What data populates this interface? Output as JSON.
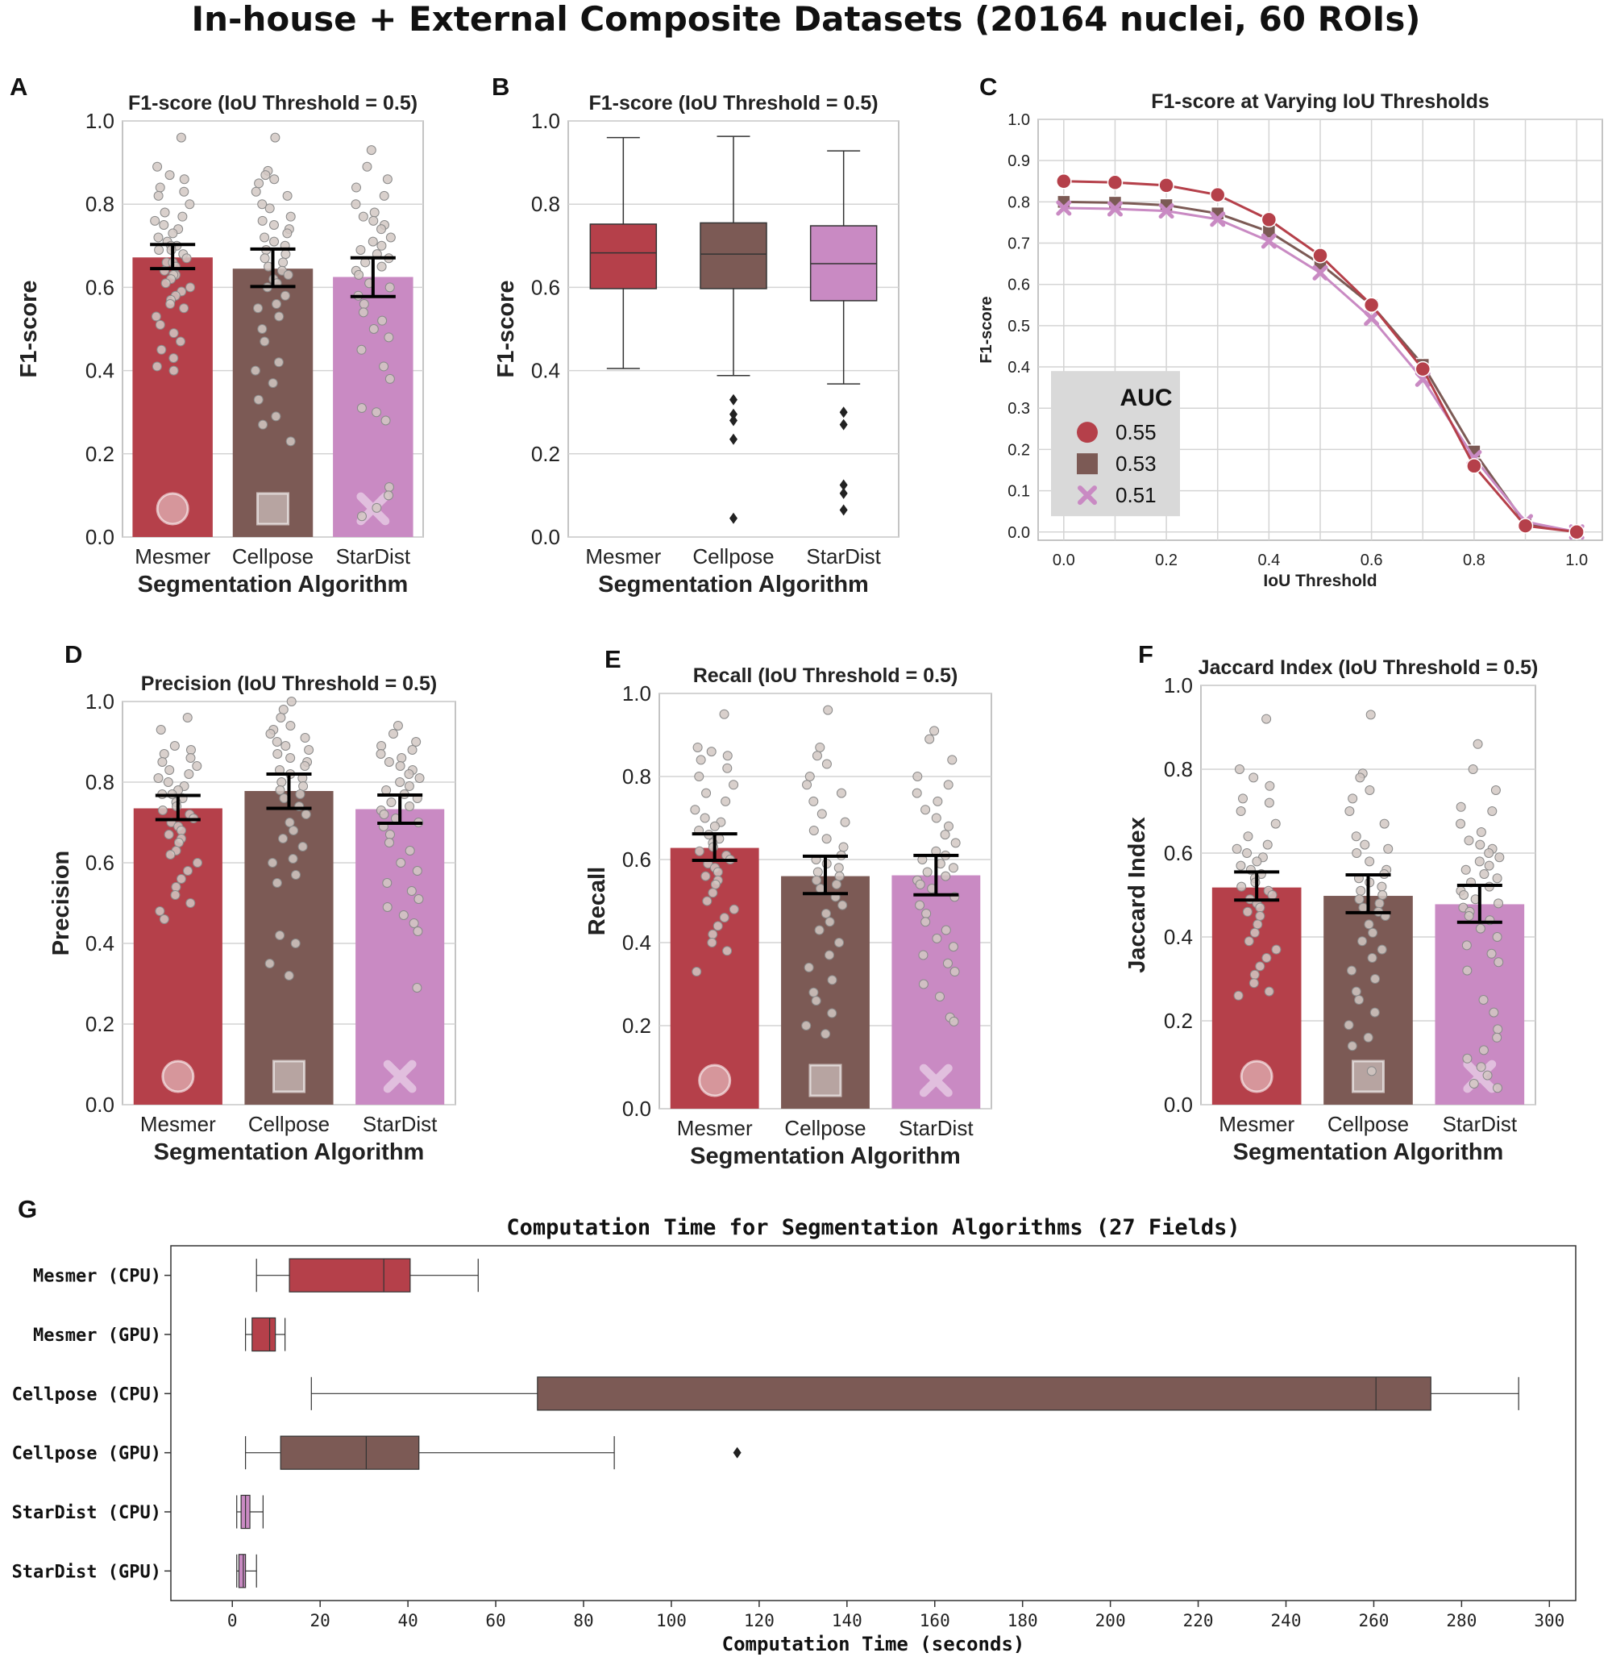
{
  "figure_title": "In-house + External Composite Datasets (20164 nuclei, 60 ROIs)",
  "colors": {
    "mesmer": "#b5404a",
    "cellpose": "#7c5a55",
    "stardist": "#c98ac3",
    "grid": "#d4d4d4",
    "frame": "#b0b0b0"
  },
  "algorithms": [
    "Mesmer",
    "Cellpose",
    "StarDist"
  ],
  "chart_data": [
    {
      "panel": "A",
      "type": "bar",
      "title": "F1-score (IoU Threshold = 0.5)",
      "xlabel": "Segmentation Algorithm",
      "ylabel": "F1-score",
      "ylim": [
        0,
        1.0
      ],
      "yticks": [
        "0.0",
        "0.2",
        "0.4",
        "0.6",
        "0.8",
        "1.0"
      ],
      "categories": [
        "Mesmer",
        "Cellpose",
        "StarDist"
      ],
      "values": [
        0.672,
        0.645,
        0.625
      ],
      "ci": [
        [
          0.645,
          0.703
        ],
        [
          0.602,
          0.692
        ],
        [
          0.578,
          0.671
        ]
      ],
      "markers": [
        "circle",
        "square",
        "x"
      ],
      "points": [
        [
          0.96,
          0.89,
          0.87,
          0.86,
          0.84,
          0.83,
          0.82,
          0.8,
          0.78,
          0.77,
          0.76,
          0.75,
          0.74,
          0.73,
          0.72,
          0.71,
          0.7,
          0.7,
          0.69,
          0.69,
          0.68,
          0.67,
          0.66,
          0.66,
          0.65,
          0.64,
          0.63,
          0.63,
          0.62,
          0.61,
          0.6,
          0.59,
          0.58,
          0.57,
          0.56,
          0.55,
          0.53,
          0.51,
          0.49,
          0.47,
          0.45,
          0.43,
          0.41,
          0.4
        ],
        [
          0.96,
          0.88,
          0.87,
          0.86,
          0.85,
          0.83,
          0.82,
          0.8,
          0.79,
          0.77,
          0.76,
          0.75,
          0.74,
          0.73,
          0.72,
          0.71,
          0.7,
          0.69,
          0.68,
          0.67,
          0.66,
          0.65,
          0.64,
          0.63,
          0.62,
          0.61,
          0.6,
          0.58,
          0.56,
          0.55,
          0.53,
          0.5,
          0.47,
          0.42,
          0.4,
          0.37,
          0.33,
          0.29,
          0.27,
          0.23
        ],
        [
          0.93,
          0.89,
          0.86,
          0.84,
          0.82,
          0.8,
          0.78,
          0.77,
          0.76,
          0.75,
          0.74,
          0.72,
          0.71,
          0.7,
          0.69,
          0.68,
          0.67,
          0.66,
          0.65,
          0.64,
          0.63,
          0.61,
          0.6,
          0.58,
          0.56,
          0.54,
          0.52,
          0.5,
          0.48,
          0.45,
          0.41,
          0.38,
          0.31,
          0.3,
          0.28,
          0.12,
          0.1,
          0.07,
          0.05
        ]
      ]
    },
    {
      "panel": "B",
      "type": "box",
      "title": "F1-score (IoU Threshold = 0.5)",
      "xlabel": "Segmentation Algorithm",
      "ylabel": "F1-score",
      "ylim": [
        0,
        1.0
      ],
      "yticks": [
        "0.0",
        "0.2",
        "0.4",
        "0.6",
        "0.8",
        "1.0"
      ],
      "categories": [
        "Mesmer",
        "Cellpose",
        "StarDist"
      ],
      "boxes": [
        {
          "whislo": 0.405,
          "q1": 0.597,
          "med": 0.683,
          "q3": 0.752,
          "whishi": 0.96,
          "fliers": []
        },
        {
          "whislo": 0.388,
          "q1": 0.597,
          "med": 0.68,
          "q3": 0.755,
          "whishi": 0.963,
          "fliers": [
            0.33,
            0.295,
            0.28,
            0.235,
            0.045
          ]
        },
        {
          "whislo": 0.368,
          "q1": 0.568,
          "med": 0.657,
          "q3": 0.748,
          "whishi": 0.928,
          "fliers": [
            0.3,
            0.27,
            0.125,
            0.105,
            0.065
          ]
        }
      ]
    },
    {
      "panel": "C",
      "type": "line",
      "title": "F1-score at Varying IoU Thresholds",
      "xlabel": "IoU Threshold",
      "ylabel": "F1-score",
      "xlim": [
        -0.05,
        1.05
      ],
      "ylim": [
        -0.02,
        1.0
      ],
      "x": [
        0.0,
        0.1,
        0.2,
        0.3,
        0.4,
        0.5,
        0.6,
        0.7,
        0.8,
        0.9,
        1.0
      ],
      "xticks": [
        "0.0",
        "0.2",
        "0.4",
        "0.6",
        "0.8",
        "1.0"
      ],
      "yticks": [
        "0.0",
        "0.1",
        "0.2",
        "0.3",
        "0.4",
        "0.5",
        "0.6",
        "0.7",
        "0.8",
        "0.9",
        "1.0"
      ],
      "legend_title": "AUC",
      "legend_loc": "center-left",
      "series": [
        {
          "name": "Mesmer",
          "auc": "0.55",
          "marker": "circle",
          "values": [
            0.85,
            0.847,
            0.84,
            0.817,
            0.757,
            0.67,
            0.55,
            0.395,
            0.16,
            0.015,
            0.0
          ]
        },
        {
          "name": "Cellpose",
          "auc": "0.53",
          "marker": "square",
          "values": [
            0.8,
            0.798,
            0.792,
            0.772,
            0.728,
            0.65,
            0.55,
            0.405,
            0.195,
            0.02,
            0.0
          ]
        },
        {
          "name": "StarDist",
          "auc": "0.51",
          "marker": "x",
          "values": [
            0.785,
            0.783,
            0.778,
            0.758,
            0.705,
            0.628,
            0.518,
            0.37,
            0.18,
            0.025,
            0.0
          ]
        }
      ]
    },
    {
      "panel": "D",
      "type": "bar",
      "title": "Precision (IoU Threshold = 0.5)",
      "xlabel": "Segmentation Algorithm",
      "ylabel": "Precision",
      "ylim": [
        0,
        1.0
      ],
      "yticks": [
        "0.0",
        "0.2",
        "0.4",
        "0.6",
        "0.8",
        "1.0"
      ],
      "categories": [
        "Mesmer",
        "Cellpose",
        "StarDist"
      ],
      "values": [
        0.735,
        0.778,
        0.733
      ],
      "ci": [
        [
          0.707,
          0.767
        ],
        [
          0.735,
          0.82
        ],
        [
          0.698,
          0.768
        ]
      ],
      "markers": [
        "circle",
        "square",
        "x"
      ],
      "points": [
        [
          0.96,
          0.93,
          0.89,
          0.88,
          0.87,
          0.86,
          0.85,
          0.84,
          0.83,
          0.82,
          0.81,
          0.8,
          0.79,
          0.78,
          0.77,
          0.77,
          0.76,
          0.75,
          0.74,
          0.73,
          0.72,
          0.71,
          0.7,
          0.69,
          0.68,
          0.67,
          0.66,
          0.65,
          0.63,
          0.62,
          0.6,
          0.58,
          0.56,
          0.54,
          0.52,
          0.5,
          0.48,
          0.46
        ],
        [
          1.0,
          0.98,
          0.96,
          0.94,
          0.93,
          0.92,
          0.91,
          0.9,
          0.89,
          0.88,
          0.87,
          0.86,
          0.85,
          0.84,
          0.83,
          0.82,
          0.81,
          0.8,
          0.79,
          0.78,
          0.77,
          0.76,
          0.74,
          0.72,
          0.7,
          0.68,
          0.66,
          0.64,
          0.61,
          0.6,
          0.57,
          0.55,
          0.42,
          0.4,
          0.35,
          0.32
        ],
        [
          0.94,
          0.92,
          0.9,
          0.89,
          0.88,
          0.87,
          0.86,
          0.85,
          0.84,
          0.83,
          0.82,
          0.81,
          0.8,
          0.79,
          0.78,
          0.77,
          0.76,
          0.75,
          0.74,
          0.73,
          0.72,
          0.71,
          0.7,
          0.69,
          0.67,
          0.65,
          0.63,
          0.6,
          0.58,
          0.55,
          0.53,
          0.51,
          0.49,
          0.47,
          0.45,
          0.43,
          0.29
        ]
      ]
    },
    {
      "panel": "E",
      "type": "bar",
      "title": "Recall (IoU Threshold = 0.5)",
      "xlabel": "Segmentation Algorithm",
      "ylabel": "Recall",
      "ylim": [
        0,
        1.0
      ],
      "yticks": [
        "0.0",
        "0.2",
        "0.4",
        "0.6",
        "0.8",
        "1.0"
      ],
      "categories": [
        "Mesmer",
        "Cellpose",
        "StarDist"
      ],
      "values": [
        0.628,
        0.56,
        0.562
      ],
      "ci": [
        [
          0.598,
          0.662
        ],
        [
          0.518,
          0.608
        ],
        [
          0.515,
          0.61
        ]
      ],
      "markers": [
        "circle",
        "square",
        "x"
      ],
      "points": [
        [
          0.95,
          0.87,
          0.86,
          0.85,
          0.84,
          0.82,
          0.8,
          0.78,
          0.76,
          0.74,
          0.72,
          0.7,
          0.69,
          0.68,
          0.67,
          0.66,
          0.65,
          0.64,
          0.63,
          0.62,
          0.61,
          0.6,
          0.59,
          0.58,
          0.57,
          0.56,
          0.55,
          0.54,
          0.52,
          0.5,
          0.48,
          0.46,
          0.44,
          0.42,
          0.4,
          0.38,
          0.33
        ],
        [
          0.96,
          0.87,
          0.85,
          0.83,
          0.8,
          0.78,
          0.76,
          0.74,
          0.71,
          0.69,
          0.67,
          0.65,
          0.63,
          0.61,
          0.6,
          0.59,
          0.58,
          0.57,
          0.56,
          0.55,
          0.54,
          0.53,
          0.51,
          0.49,
          0.47,
          0.45,
          0.43,
          0.4,
          0.37,
          0.34,
          0.31,
          0.28,
          0.26,
          0.23,
          0.2,
          0.18
        ],
        [
          0.91,
          0.89,
          0.84,
          0.8,
          0.78,
          0.76,
          0.74,
          0.72,
          0.7,
          0.68,
          0.66,
          0.64,
          0.62,
          0.61,
          0.6,
          0.59,
          0.58,
          0.57,
          0.56,
          0.55,
          0.54,
          0.53,
          0.51,
          0.49,
          0.47,
          0.45,
          0.43,
          0.41,
          0.39,
          0.37,
          0.35,
          0.33,
          0.3,
          0.27,
          0.22,
          0.21
        ]
      ]
    },
    {
      "panel": "F",
      "type": "bar",
      "title": "Jaccard Index (IoU Threshold = 0.5)",
      "xlabel": "Segmentation Algorithm",
      "ylabel": "Jaccard Index",
      "ylim": [
        0,
        1.0
      ],
      "yticks": [
        "0.0",
        "0.2",
        "0.4",
        "0.6",
        "0.8",
        "1.0"
      ],
      "categories": [
        "Mesmer",
        "Cellpose",
        "StarDist"
      ],
      "values": [
        0.518,
        0.498,
        0.478
      ],
      "ci": [
        [
          0.488,
          0.555
        ],
        [
          0.458,
          0.548
        ],
        [
          0.435,
          0.523
        ]
      ],
      "markers": [
        "circle",
        "square",
        "x"
      ],
      "points": [
        [
          0.92,
          0.8,
          0.78,
          0.76,
          0.73,
          0.72,
          0.7,
          0.67,
          0.64,
          0.62,
          0.61,
          0.6,
          0.59,
          0.58,
          0.57,
          0.56,
          0.55,
          0.54,
          0.53,
          0.52,
          0.51,
          0.5,
          0.49,
          0.48,
          0.47,
          0.46,
          0.45,
          0.43,
          0.41,
          0.39,
          0.37,
          0.35,
          0.33,
          0.31,
          0.29,
          0.27,
          0.26
        ],
        [
          0.93,
          0.79,
          0.78,
          0.75,
          0.73,
          0.7,
          0.67,
          0.64,
          0.62,
          0.61,
          0.6,
          0.58,
          0.56,
          0.55,
          0.54,
          0.53,
          0.52,
          0.51,
          0.5,
          0.49,
          0.48,
          0.47,
          0.46,
          0.45,
          0.43,
          0.41,
          0.39,
          0.37,
          0.35,
          0.32,
          0.3,
          0.27,
          0.25,
          0.22,
          0.19,
          0.16,
          0.14,
          0.08
        ],
        [
          0.86,
          0.8,
          0.75,
          0.71,
          0.7,
          0.67,
          0.65,
          0.63,
          0.62,
          0.61,
          0.6,
          0.59,
          0.58,
          0.57,
          0.56,
          0.55,
          0.54,
          0.53,
          0.52,
          0.51,
          0.5,
          0.49,
          0.48,
          0.47,
          0.46,
          0.45,
          0.44,
          0.42,
          0.4,
          0.38,
          0.36,
          0.34,
          0.32,
          0.25,
          0.22,
          0.18,
          0.16,
          0.13,
          0.11,
          0.09,
          0.07,
          0.05,
          0.04
        ]
      ]
    },
    {
      "panel": "G",
      "type": "box-horizontal",
      "title": "Computation Time for Segmentation Algorithms (27 Fields)",
      "xlabel": "Computation Time (seconds)",
      "xlim": [
        -14,
        306
      ],
      "xticks": [
        0,
        20,
        40,
        60,
        80,
        100,
        120,
        140,
        160,
        180,
        200,
        220,
        240,
        260,
        280,
        300
      ],
      "categories": [
        "Mesmer (CPU)",
        "Mesmer (GPU)",
        "Cellpose (CPU)",
        "Cellpose (GPU)",
        "StarDist (CPU)",
        "StarDist (GPU)"
      ],
      "color_keys": [
        "mesmer",
        "mesmer",
        "cellpose",
        "cellpose",
        "stardist",
        "stardist"
      ],
      "boxes": [
        {
          "whislo": 5.5,
          "q1": 13,
          "med": 34.5,
          "q3": 40.5,
          "whishi": 56,
          "fliers": []
        },
        {
          "whislo": 3,
          "q1": 4.5,
          "med": 8.5,
          "q3": 9.8,
          "whishi": 12,
          "fliers": []
        },
        {
          "whislo": 18,
          "q1": 69.5,
          "med": 260.5,
          "q3": 273,
          "whishi": 293,
          "fliers": []
        },
        {
          "whislo": 3,
          "q1": 11,
          "med": 30.5,
          "q3": 42.5,
          "whishi": 87,
          "fliers": [
            115
          ]
        },
        {
          "whislo": 1,
          "q1": 2,
          "med": 3,
          "q3": 4,
          "whishi": 7,
          "fliers": []
        },
        {
          "whislo": 1,
          "q1": 1.5,
          "med": 2.5,
          "q3": 3,
          "whishi": 5.5,
          "fliers": []
        }
      ]
    }
  ]
}
